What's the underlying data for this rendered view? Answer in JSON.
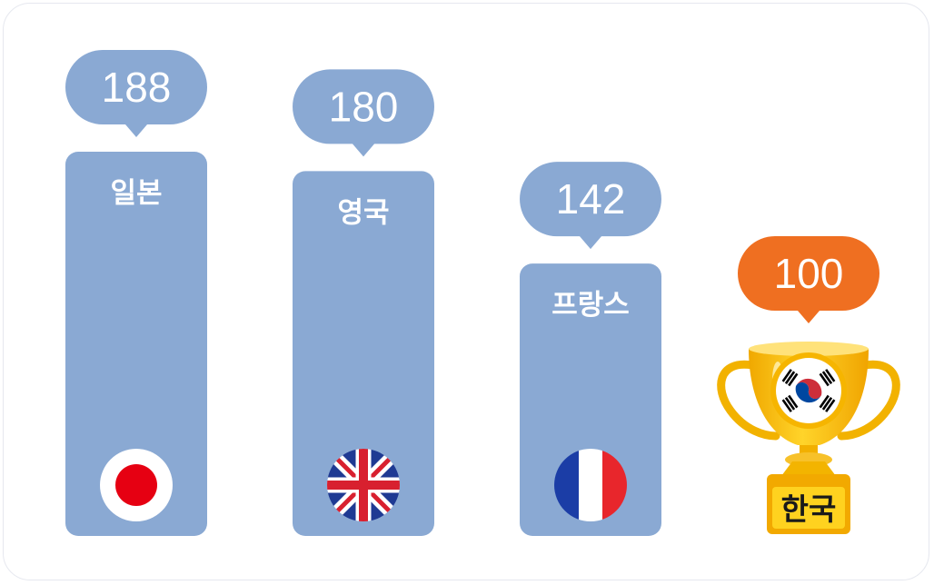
{
  "chart_data": {
    "type": "bar",
    "categories": [
      "일본",
      "영국",
      "프랑스",
      "한국"
    ],
    "values": [
      188,
      180,
      142,
      100
    ],
    "highlight_index": 3,
    "flags": [
      "japan-flag-icon",
      "uk-flag-icon",
      "france-flag-icon",
      "korea-flag-icon"
    ],
    "colors": {
      "bar": "#8aa9d3",
      "highlight": "#ef6f21",
      "trophy_gold": "#f5b800",
      "label_box": "#ffd21f"
    },
    "legend": "none",
    "grid": false
  }
}
